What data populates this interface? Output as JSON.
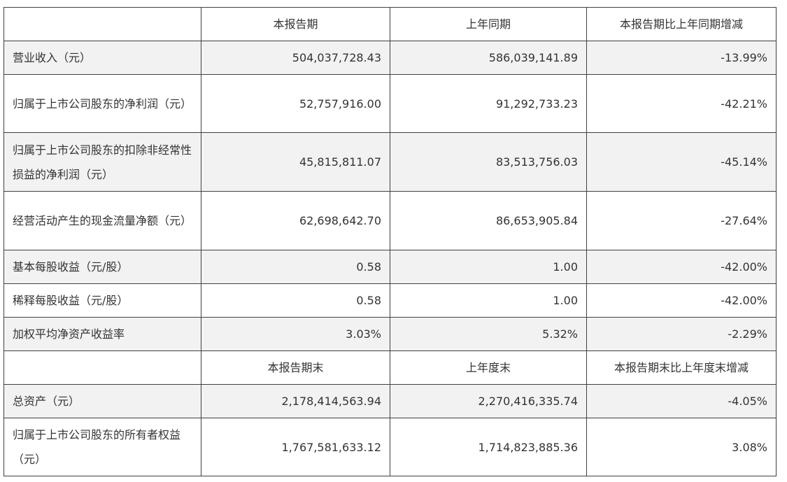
{
  "header1": [
    "",
    "本报告期",
    "上年同期",
    "本报告期比上年同期增减"
  ],
  "header2": [
    "",
    "本报告期末",
    "上年度末",
    "本报告期末比上年度末增减"
  ],
  "rows": [
    {
      "label": "营业收入（元）",
      "current": "504,037,728.43",
      "prior": "586,039,141.89",
      "change": "-13.99%"
    },
    {
      "label": "归属于上市公司股东的净利润（元）",
      "current": "52,757,916.00",
      "prior": "91,292,733.23",
      "change": "-42.21%"
    },
    {
      "label": "归属于上市公司股东的扣除非经常性损益的净利润（元）",
      "current": "45,815,811.07",
      "prior": "83,513,756.03",
      "change": "-45.14%"
    },
    {
      "label": "经营活动产生的现金流量净额（元）",
      "current": "62,698,642.70",
      "prior": "86,653,905.84",
      "change": "-27.64%"
    },
    {
      "label": "基本每股收益（元/股）",
      "current": "0.58",
      "prior": "1.00",
      "change": "-42.00%"
    },
    {
      "label": "稀释每股收益（元/股）",
      "current": "0.58",
      "prior": "1.00",
      "change": "-42.00%"
    },
    {
      "label": "加权平均净资产收益率",
      "current": "3.03%",
      "prior": "5.32%",
      "change": "-2.29%"
    }
  ],
  "rows2": [
    {
      "label": "总资产（元）",
      "current": "2,178,414,563.94",
      "prior": "2,270,416,335.74",
      "change": "-4.05%"
    },
    {
      "label": "归属于上市公司股东的所有者权益（元）",
      "current": "1,767,581,633.12",
      "prior": "1,714,823,885.36",
      "change": "3.08%"
    }
  ]
}
